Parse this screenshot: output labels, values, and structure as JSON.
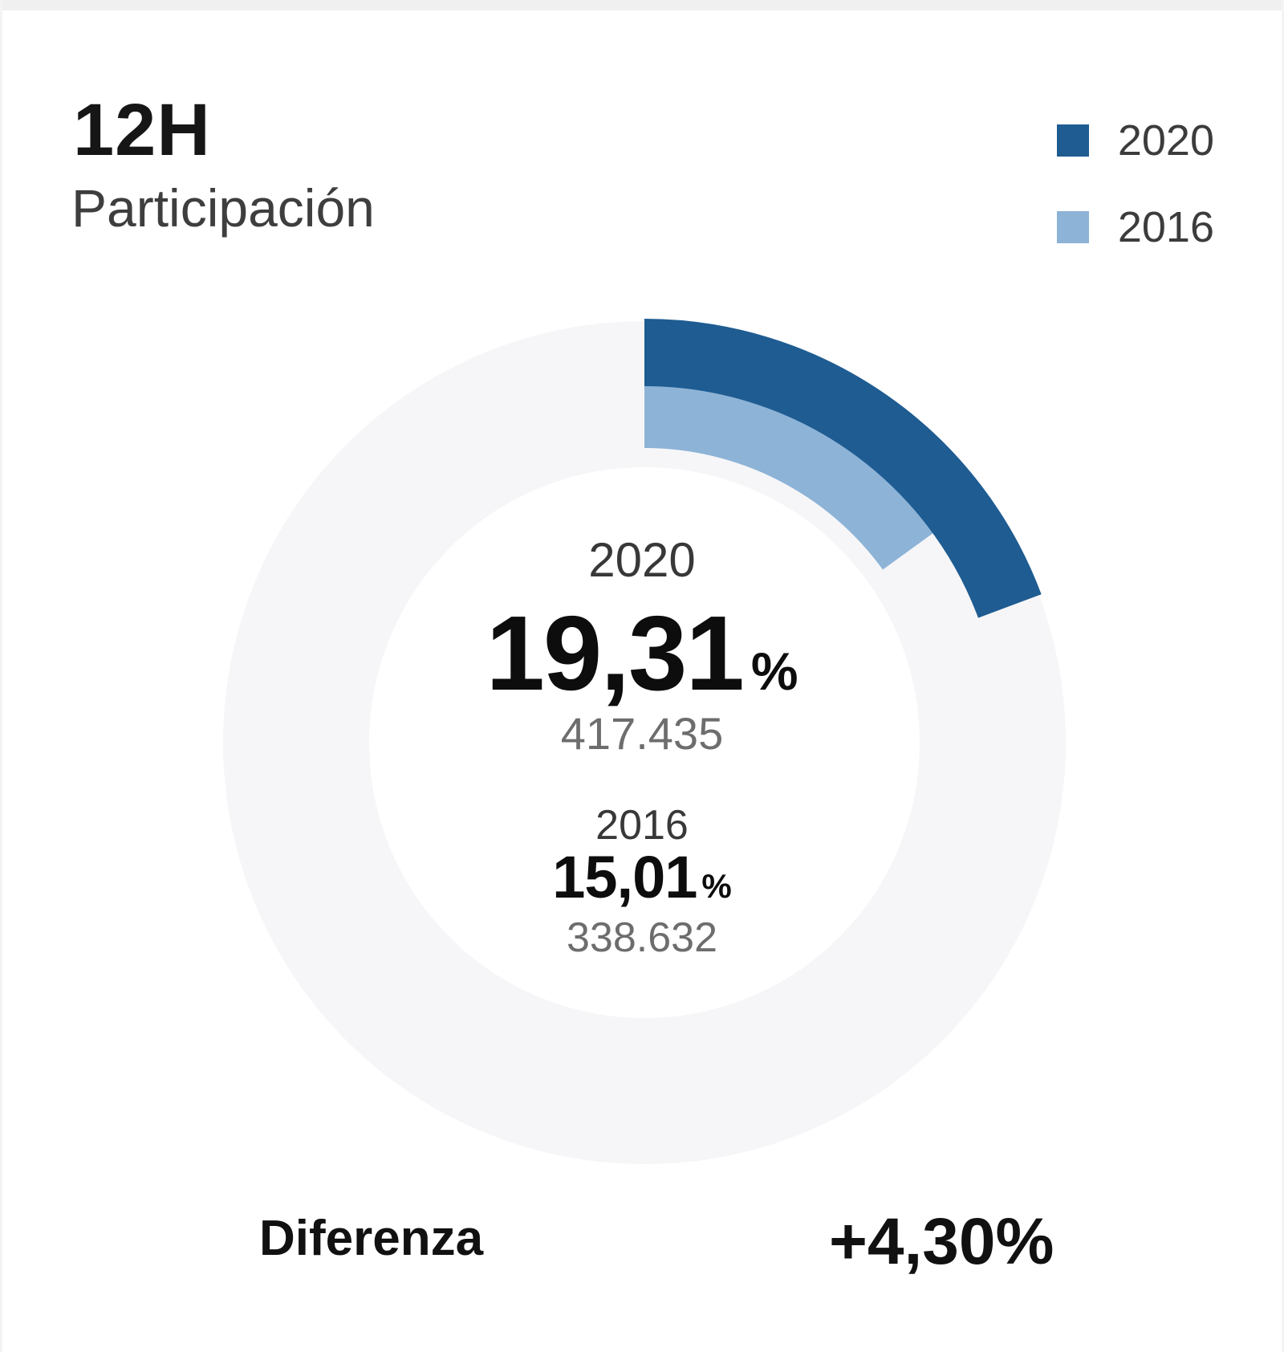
{
  "header": {
    "title": "12H",
    "subtitle": "Participación"
  },
  "chart_data": {
    "type": "donut-gauge",
    "title": "12H Participación",
    "unit": "%",
    "max_percent": 100,
    "start_angle_deg": 0,
    "direction": "clockwise",
    "track_color": "#f6f6f8",
    "legend_position": "top-right",
    "series": [
      {
        "name": "2020",
        "percent": 19.31,
        "percent_label": "19,31",
        "votes": "417.435",
        "color": "#1e5c92",
        "ring": "outer"
      },
      {
        "name": "2016",
        "percent": 15.01,
        "percent_label": "15,01",
        "votes": "338.632",
        "color": "#8db3d7",
        "ring": "inner"
      }
    ],
    "difference_label": "Diferenza",
    "difference_value": "+4,30%"
  }
}
